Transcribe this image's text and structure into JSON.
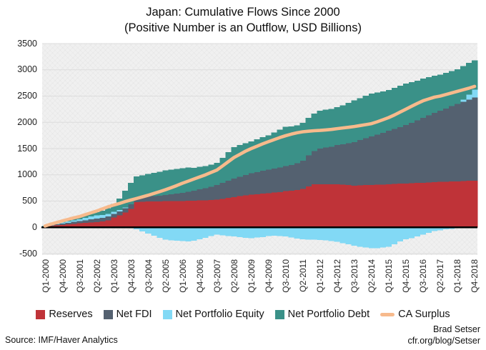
{
  "header": {
    "title_line1": "Japan: Cumulative Flows Since 2000",
    "title_line2": "(Positive Number is an Outflow, USD Billions)"
  },
  "footer": {
    "source": "Source: IMF/Haver Analytics",
    "credit_name": "Brad Setser",
    "credit_url": "cfr.org/blog/Setser"
  },
  "chart_data": {
    "type": "bar",
    "stacked": true,
    "title": "Japan: Cumulative Flows Since 2000",
    "subtitle": "(Positive Number is an Outflow, USD Billions)",
    "xlabel": "",
    "ylabel": "",
    "ylim": [
      -500,
      3500
    ],
    "y_ticks": [
      3500,
      3000,
      2500,
      2000,
      1500,
      1000,
      500,
      0,
      -500
    ],
    "x_tick_step_quarters": 3,
    "x_tick_labels": [
      "Q1-2000",
      "Q4-2000",
      "Q3-2001",
      "Q2-2002",
      "Q1-2003",
      "Q4-2003",
      "Q3-2004",
      "Q2-2005",
      "Q1-2006",
      "Q4-2006",
      "Q3-2007",
      "Q2-2008",
      "Q1-2009",
      "Q4-2009",
      "Q3-2010",
      "Q2-2011",
      "Q1-2012",
      "Q4-2012",
      "Q3-2013",
      "Q2-2014",
      "Q1-2015",
      "Q4-2015",
      "Q3-2016",
      "Q2-2017",
      "Q1-2018",
      "Q4-2018"
    ],
    "n_bars": 76,
    "grid": "horizontal",
    "legend_position": "bottom",
    "colors": {
      "reserves": "#bf3338",
      "net_fdi": "#546170",
      "net_portfolio_equity": "#82d9f5",
      "net_portfolio_debt": "#3a9188",
      "ca_surplus": "#f7ba8c",
      "grid_line": "#dcdcdc",
      "zero_line": "#000000",
      "plot_background": "#f0f0f0"
    },
    "series": [
      {
        "name": "Reserves",
        "type": "bar",
        "values": [
          12,
          25,
          35,
          45,
          55,
          65,
          75,
          85,
          95,
          100,
          110,
          135,
          185,
          230,
          280,
          350,
          480,
          485,
          490,
          492,
          495,
          498,
          500,
          500,
          502,
          505,
          509,
          512,
          515,
          520,
          525,
          540,
          560,
          577,
          595,
          610,
          620,
          630,
          640,
          650,
          660,
          670,
          690,
          700,
          710,
          730,
          780,
          820,
          822,
          822,
          821,
          820,
          815,
          805,
          795,
          800,
          805,
          808,
          812,
          816,
          822,
          826,
          830,
          836,
          840,
          845,
          850,
          856,
          863,
          866,
          869,
          872,
          876,
          880,
          885,
          890
        ]
      },
      {
        "name": "Net FDI",
        "type": "bar",
        "values": [
          8,
          15,
          22,
          28,
          33,
          38,
          42,
          50,
          60,
          68,
          70,
          70,
          70,
          75,
          85,
          90,
          92,
          95,
          100,
          105,
          110,
          120,
          130,
          140,
          155,
          170,
          185,
          210,
          230,
          255,
          280,
          305,
          330,
          354,
          370,
          390,
          408,
          420,
          435,
          449,
          458,
          468,
          476,
          490,
          510,
          540,
          590,
          630,
          680,
          700,
          715,
          748,
          770,
          800,
          830,
          860,
          895,
          925,
          955,
          985,
          1019,
          1050,
          1080,
          1114,
          1150,
          1190,
          1236,
          1280,
          1318,
          1355,
          1395,
          1435,
          1475,
          1510,
          1545,
          1580
        ]
      },
      {
        "name": "Net Portfolio Equity",
        "type": "bar",
        "values": [
          5,
          10,
          15,
          18,
          25,
          32,
          38,
          48,
          55,
          60,
          58,
          50,
          40,
          25,
          10,
          0,
          -40,
          -80,
          -120,
          -160,
          -200,
          -238,
          -250,
          -255,
          -260,
          -270,
          -255,
          -230,
          -200,
          -170,
          -140,
          -150,
          -165,
          -175,
          -190,
          -200,
          -205,
          -195,
          -185,
          -170,
          -160,
          -168,
          -175,
          -195,
          -215,
          -230,
          -235,
          -238,
          -240,
          -250,
          -260,
          -275,
          -300,
          -325,
          -350,
          -370,
          -385,
          -395,
          -400,
          -385,
          -370,
          -320,
          -270,
          -230,
          -210,
          -175,
          -140,
          -105,
          -70,
          -55,
          -40,
          -30,
          -20,
          40,
          100,
          150
        ]
      },
      {
        "name": "Net Portfolio Debt",
        "type": "bar",
        "values": [
          8,
          12,
          18,
          22,
          25,
          28,
          32,
          45,
          55,
          62,
          80,
          110,
          150,
          220,
          320,
          408,
          395,
          410,
          425,
          440,
          455,
          464,
          470,
          475,
          470,
          465,
          440,
          430,
          425,
          420,
          422,
          480,
          540,
          598,
          600,
          605,
          611,
          625,
          640,
          652,
          690,
          720,
          748,
          730,
          725,
          720,
          715,
          718,
          720,
          718,
          719,
          720,
          740,
          765,
          790,
          800,
          808,
          815,
          800,
          790,
          775,
          780,
          785,
          788,
          775,
          760,
          747,
          725,
          707,
          690,
          680,
          670,
          660,
          640,
          600,
          560
        ]
      },
      {
        "name": "CA Surplus",
        "type": "line",
        "values": [
          25,
          60,
          90,
          120,
          150,
          180,
          205,
          240,
          275,
          310,
          350,
          390,
          425,
          455,
          490,
          520,
          550,
          580,
          610,
          645,
          680,
          715,
          755,
          795,
          840,
          880,
          920,
          960,
          1000,
          1045,
          1090,
          1170,
          1250,
          1330,
          1390,
          1450,
          1500,
          1545,
          1590,
          1630,
          1670,
          1710,
          1745,
          1775,
          1800,
          1820,
          1830,
          1840,
          1845,
          1855,
          1865,
          1880,
          1893,
          1906,
          1920,
          1938,
          1956,
          1975,
          2010,
          2050,
          2090,
          2140,
          2195,
          2250,
          2305,
          2360,
          2410,
          2445,
          2480,
          2500,
          2530,
          2560,
          2590,
          2620,
          2650,
          2685
        ]
      }
    ],
    "legend": [
      {
        "label": "Reserves",
        "color": "#bf3338",
        "swatch": "square"
      },
      {
        "label": "Net FDI",
        "color": "#546170",
        "swatch": "square"
      },
      {
        "label": "Net Portfolio Equity",
        "color": "#82d9f5",
        "swatch": "square"
      },
      {
        "label": "Net Portfolio Debt",
        "color": "#3a9188",
        "swatch": "square"
      },
      {
        "label": "CA Surplus",
        "color": "#f7ba8c",
        "swatch": "line"
      }
    ]
  }
}
